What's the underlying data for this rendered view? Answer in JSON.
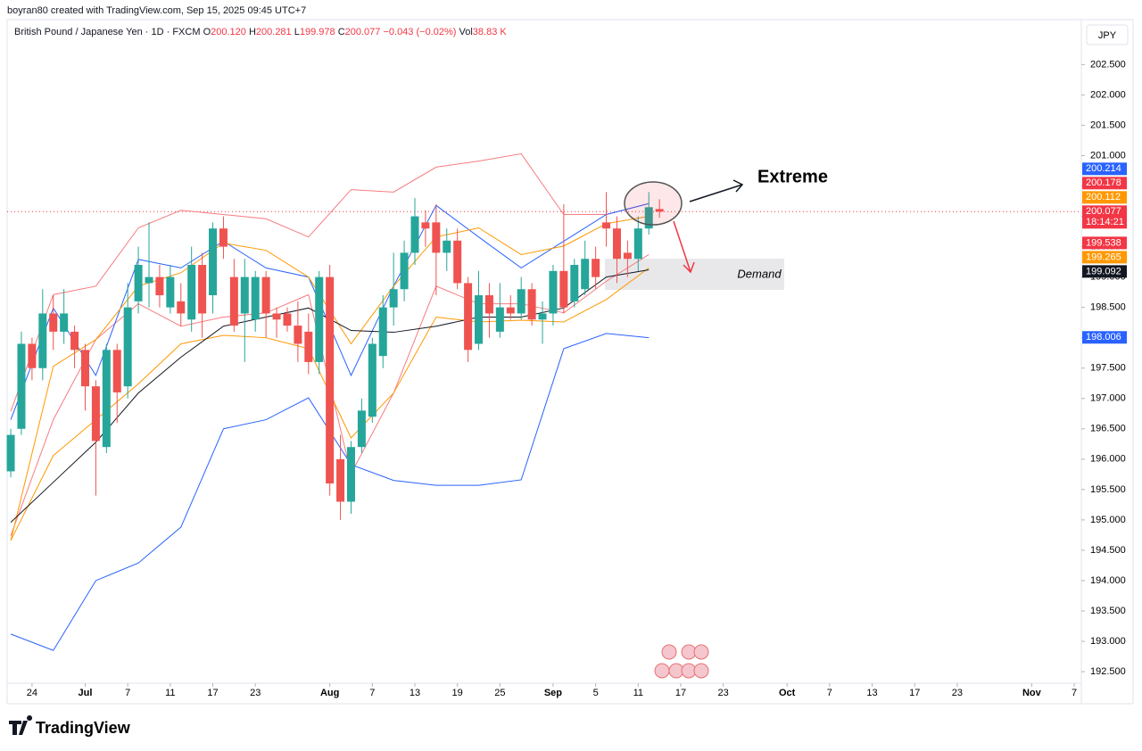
{
  "header": {
    "credit": "boyran80 created with TradingView.com, Sep 15, 2025 09:45 UTC+7",
    "symbol": "British Pound / Japanese Yen · 1D · FXCM",
    "o_key": "O",
    "o": "200.120",
    "h_key": "H",
    "h": "200.281",
    "l_key": "L",
    "l": "199.978",
    "c_key": "C",
    "c": "200.077",
    "change": "−0.043 (−0.02%)",
    "vol_key": "Vol",
    "vol": "38.83 K",
    "currency": "JPY",
    "countdown": "18:14:21",
    "logo": "TradingView"
  },
  "chart_data": {
    "type": "candlestick",
    "annotations": {
      "extreme": "Extreme",
      "demand": "Demand"
    },
    "up_color": "#26a69a",
    "down_color": "#ef5350",
    "open": [
      195.8,
      196.5,
      197.9,
      197.5,
      198.4,
      198.1,
      198.1,
      197.8,
      197.2,
      196.2,
      197.8,
      197.2,
      198.6,
      198.9,
      199.0,
      198.5,
      198.6,
      198.3,
      199.2,
      198.7,
      199.8,
      199.0,
      198.4,
      198.3,
      199.0,
      198.4,
      198.4,
      198.2,
      198.1,
      197.6,
      199.0,
      196.0,
      195.3,
      196.2,
      196.7,
      197.7,
      198.5,
      198.8,
      199.4,
      199.9,
      199.9,
      199.4,
      199.6,
      198.9,
      197.9,
      198.7,
      198.1,
      198.5,
      198.4,
      198.8,
      198.3,
      198.4,
      199.1,
      198.6,
      198.8,
      199.3,
      199.9,
      199.8,
      199.4,
      199.3,
      199.8,
      200.12
    ],
    "high": [
      196.5,
      198.1,
      198.0,
      198.8,
      198.7,
      198.8,
      198.2,
      197.9,
      197.3,
      197.9,
      197.9,
      198.9,
      199.5,
      199.9,
      199.2,
      199.2,
      198.9,
      199.5,
      199.4,
      199.9,
      200.0,
      199.3,
      199.3,
      199.1,
      199.1,
      198.5,
      198.5,
      198.6,
      198.4,
      199.1,
      199.2,
      196.4,
      196.3,
      197.0,
      198.0,
      198.7,
      199.4,
      199.6,
      200.3,
      200.1,
      200.2,
      199.8,
      199.8,
      199.0,
      199.1,
      198.9,
      198.9,
      198.7,
      199.0,
      198.9,
      198.6,
      199.2,
      200.2,
      199.3,
      199.6,
      199.5,
      200.4,
      200.0,
      199.6,
      200.0,
      200.4,
      200.281
    ],
    "low": [
      195.7,
      196.4,
      197.3,
      197.3,
      197.8,
      197.9,
      197.5,
      196.8,
      195.4,
      196.1,
      196.6,
      197.0,
      198.4,
      198.5,
      198.5,
      198.4,
      198.2,
      198.1,
      198.0,
      198.4,
      199.3,
      198.1,
      197.6,
      198.1,
      198.0,
      198.0,
      198.1,
      197.6,
      197.4,
      197.4,
      195.4,
      195.0,
      195.1,
      196.1,
      196.6,
      197.5,
      198.2,
      198.6,
      199.2,
      199.5,
      198.7,
      199.1,
      198.8,
      197.6,
      197.8,
      198.0,
      198.0,
      198.3,
      198.3,
      198.2,
      197.9,
      198.2,
      198.4,
      198.5,
      198.7,
      198.8,
      199.5,
      198.9,
      199.0,
      199.1,
      199.7,
      199.978
    ],
    "close": [
      196.4,
      197.9,
      197.5,
      198.4,
      198.1,
      198.4,
      197.8,
      197.2,
      196.3,
      197.8,
      197.1,
      198.5,
      199.2,
      199.0,
      198.7,
      199.0,
      198.4,
      199.2,
      198.4,
      199.8,
      199.5,
      198.2,
      199.0,
      199.0,
      198.4,
      198.3,
      198.2,
      197.9,
      197.6,
      199.0,
      195.6,
      195.3,
      196.2,
      196.8,
      197.9,
      198.5,
      198.8,
      199.4,
      200.0,
      199.8,
      199.4,
      199.6,
      198.9,
      197.8,
      198.7,
      198.4,
      198.5,
      198.4,
      198.8,
      198.3,
      198.4,
      199.1,
      198.5,
      199.2,
      199.3,
      199.0,
      199.8,
      199.3,
      199.3,
      199.8,
      200.15,
      200.077
    ],
    "line_x": [
      0,
      4,
      8,
      12,
      16,
      20,
      24,
      28,
      32,
      36,
      40,
      44,
      48,
      52,
      56,
      60
    ],
    "lines": [
      {
        "color": "#f77c80",
        "values": [
          196.79,
          198.71,
          198.85,
          199.81,
          200.1,
          200.03,
          199.96,
          199.66,
          200.44,
          200.4,
          200.81,
          200.91,
          201.03,
          200.03,
          200.03,
          200.21
        ]
      },
      {
        "color": "#f77c80",
        "values": [
          194.74,
          196.65,
          197.97,
          198.56,
          198.19,
          198.34,
          198.41,
          198.71,
          195.76,
          197.09,
          198.85,
          198.56,
          198.56,
          198.41,
          198.93,
          199.37
        ]
      },
      {
        "color": "#2962ff",
        "values": [
          196.65,
          198.49,
          197.38,
          199.29,
          199.15,
          199.59,
          199.15,
          199.0,
          197.38,
          198.85,
          200.18,
          199.66,
          199.15,
          199.59,
          200.03,
          200.21
        ]
      },
      {
        "color": "#2962ff",
        "values": [
          193.12,
          192.85,
          194.0,
          194.29,
          194.88,
          196.5,
          196.65,
          197.01,
          195.91,
          195.65,
          195.57,
          195.57,
          195.66,
          197.82,
          198.07,
          198.0
        ]
      },
      {
        "color": "#ff9800",
        "values": [
          194.66,
          197.53,
          197.97,
          198.85,
          199.07,
          199.56,
          199.44,
          199.0,
          197.9,
          198.85,
          199.66,
          199.81,
          199.37,
          199.51,
          199.88,
          200.0
        ]
      },
      {
        "color": "#ff9800",
        "values": [
          194.66,
          196.06,
          196.65,
          197.24,
          197.9,
          198.04,
          198.0,
          197.82,
          196.35,
          197.09,
          198.34,
          198.26,
          198.29,
          198.26,
          198.63,
          199.15
        ]
      },
      {
        "color": "#131722",
        "values": [
          194.96,
          195.62,
          196.28,
          197.09,
          197.68,
          198.19,
          198.34,
          198.49,
          198.12,
          198.09,
          198.19,
          198.34,
          198.34,
          198.49,
          199.0,
          199.12
        ]
      }
    ],
    "price_labels": [
      {
        "value": 200.214,
        "color": "#2962ff"
      },
      {
        "value": 200.178,
        "color": "#f23645"
      },
      {
        "value": 200.112,
        "color": "#ff9800"
      },
      {
        "value": 200.077,
        "color": "#f23645"
      },
      {
        "value": 199.538,
        "color": "#f23645"
      },
      {
        "value": 199.265,
        "color": "#ff9800"
      },
      {
        "value": 199.092,
        "color": "#131722"
      },
      {
        "value": 198.006,
        "color": "#2962ff"
      }
    ],
    "current_price": 200.077,
    "ylim": [
      192.31,
      203.24
    ],
    "yticks": [
      {
        "value": 192.5,
        "label": "192.500"
      },
      {
        "value": 193,
        "label": "193.000"
      },
      {
        "value": 193.5,
        "label": "193.500"
      },
      {
        "value": 194,
        "label": "194.000"
      },
      {
        "value": 194.5,
        "label": "194.500"
      },
      {
        "value": 195,
        "label": "195.000"
      },
      {
        "value": 195.5,
        "label": "195.500"
      },
      {
        "value": 196,
        "label": "196.000"
      },
      {
        "value": 196.5,
        "label": "196.500"
      },
      {
        "value": 197,
        "label": "197.000"
      },
      {
        "value": 197.5,
        "label": "197.500"
      },
      {
        "value": 198,
        "label": "198.000"
      },
      {
        "value": 198.5,
        "label": "198.500"
      },
      {
        "value": 199,
        "label": "199.000"
      },
      {
        "value": 199.5,
        "label": "199.500"
      },
      {
        "value": 200,
        "label": "200.000"
      },
      {
        "value": 200.5,
        "label": "200.500"
      },
      {
        "value": 201,
        "label": "201.000"
      },
      {
        "value": 201.5,
        "label": "201.500"
      },
      {
        "value": 202,
        "label": "202.000"
      },
      {
        "value": 202.5,
        "label": "202.500"
      }
    ],
    "xlim": [
      -0.34,
      100.67
    ],
    "xticks": [
      {
        "value": 2,
        "label": "24"
      },
      {
        "value": 7,
        "label": "Jul"
      },
      {
        "value": 11,
        "label": "7"
      },
      {
        "value": 15,
        "label": "11"
      },
      {
        "value": 19,
        "label": "17"
      },
      {
        "value": 23,
        "label": "23"
      },
      {
        "value": 30,
        "label": "Aug"
      },
      {
        "value": 34,
        "label": "7"
      },
      {
        "value": 38,
        "label": "13"
      },
      {
        "value": 42,
        "label": "19"
      },
      {
        "value": 46,
        "label": "25"
      },
      {
        "value": 51,
        "label": "Sep"
      },
      {
        "value": 55,
        "label": "5"
      },
      {
        "value": 59,
        "label": "11"
      },
      {
        "value": 63,
        "label": "17"
      },
      {
        "value": 67,
        "label": "23"
      },
      {
        "value": 73,
        "label": "Oct"
      },
      {
        "value": 77,
        "label": "7"
      },
      {
        "value": 81,
        "label": "13"
      },
      {
        "value": 85,
        "label": "17"
      },
      {
        "value": 89,
        "label": "23"
      },
      {
        "value": 96,
        "label": "Nov"
      },
      {
        "value": 100,
        "label": "7"
      }
    ]
  }
}
